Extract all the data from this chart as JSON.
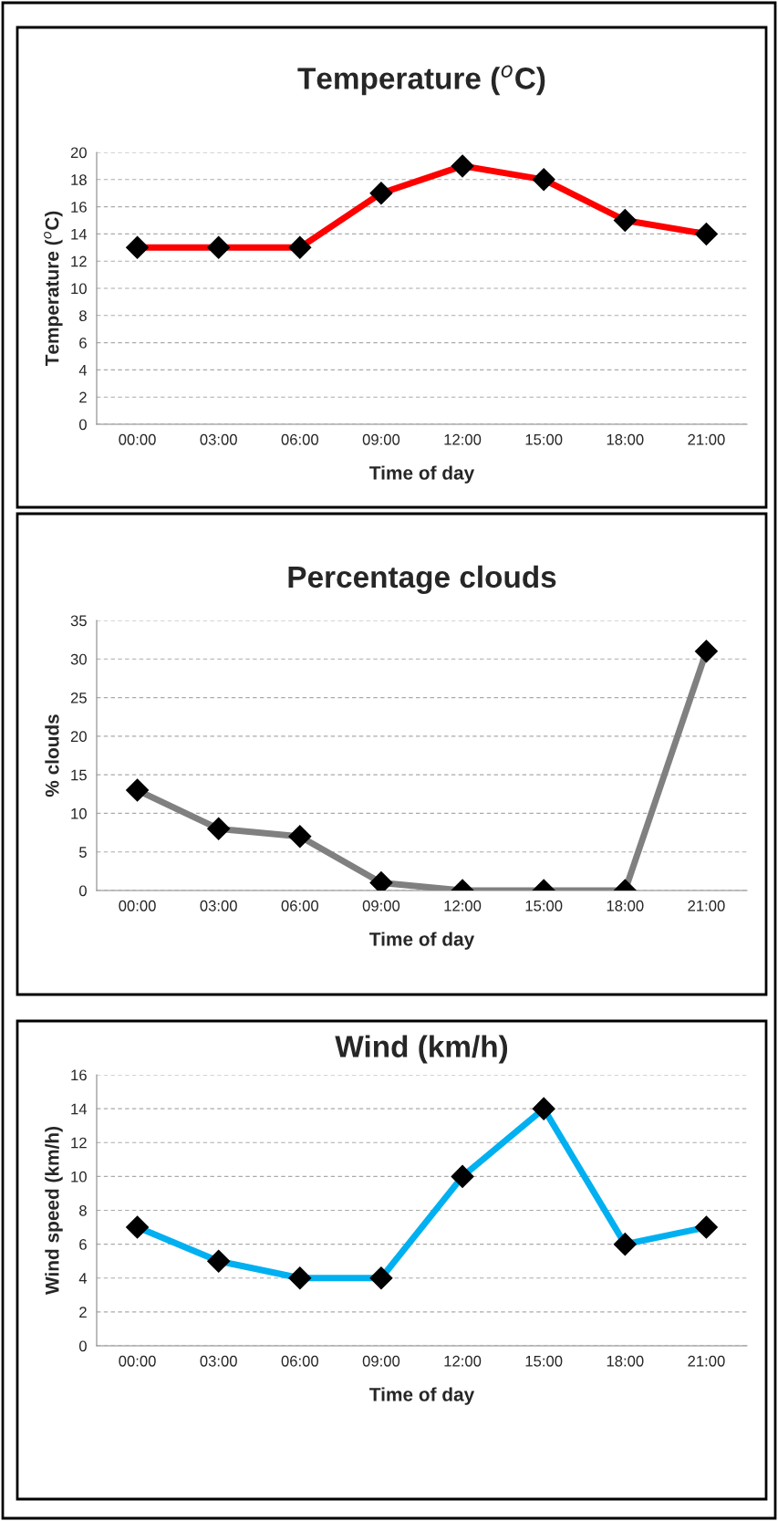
{
  "chart_data": [
    {
      "type": "line",
      "title": "Temperature ($^{o}$C)",
      "xlabel": "Time of day",
      "ylabel": "Temperature ($^{o}$C)",
      "categories": [
        "00:00",
        "03:00",
        "06:00",
        "09:00",
        "12:00",
        "15:00",
        "18:00",
        "21:00"
      ],
      "series": [
        {
          "color": "#ff0000",
          "values": [
            13,
            13,
            13,
            17,
            19,
            18,
            15,
            14
          ]
        }
      ],
      "ylim": [
        0,
        20
      ],
      "yticks": [
        0,
        2,
        4,
        6,
        8,
        10,
        12,
        14,
        16,
        18,
        20
      ],
      "grid": "y",
      "marker": "diamond",
      "line_style": "solid",
      "legend": false
    },
    {
      "type": "line",
      "title": "Percentage clouds",
      "xlabel": "Time of day",
      "ylabel": "% clouds",
      "categories": [
        "00:00",
        "03:00",
        "06:00",
        "09:00",
        "12:00",
        "15:00",
        "18:00",
        "21:00"
      ],
      "series": [
        {
          "color": "#808080",
          "values": [
            13,
            8,
            7,
            1,
            0,
            0,
            0,
            31
          ]
        }
      ],
      "ylim": [
        0,
        35
      ],
      "yticks": [
        0,
        5,
        10,
        15,
        20,
        25,
        30,
        35
      ],
      "grid": "y",
      "marker": "diamond",
      "line_style": "solid",
      "legend": false
    },
    {
      "type": "line",
      "title": "Wind (km/h)",
      "xlabel": "Time of day",
      "ylabel": "Wind speed (km/h)",
      "categories": [
        "00:00",
        "03:00",
        "06:00",
        "09:00",
        "12:00",
        "15:00",
        "18:00",
        "21:00"
      ],
      "series": [
        {
          "color": "#00b0f0",
          "values": [
            7,
            5,
            4,
            4,
            10,
            14,
            6,
            7
          ]
        }
      ],
      "ylim": [
        0,
        16
      ],
      "yticks": [
        0,
        2,
        4,
        6,
        8,
        10,
        12,
        14,
        16
      ],
      "grid": "y",
      "marker": "diamond",
      "line_style": "solid",
      "legend": false
    }
  ]
}
